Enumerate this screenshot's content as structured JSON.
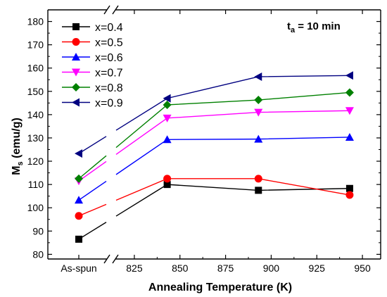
{
  "chart_data": {
    "type": "line",
    "title": "",
    "xlabel": "Annealing Temperature (K)",
    "ylabel_main": "M",
    "ylabel_sub": "s",
    "ylabel_unit": " (emu/g)",
    "annotation": {
      "main": "t",
      "sub": "a",
      "rest": " = 10 min"
    },
    "x_category": "As-spun",
    "x_ticks": [
      825,
      850,
      875,
      900,
      925,
      950
    ],
    "xlim": [
      815,
      960
    ],
    "ylim": [
      78,
      185
    ],
    "y_ticks": [
      80,
      90,
      100,
      110,
      120,
      130,
      140,
      150,
      160,
      170,
      180
    ],
    "legend_position": "top-left",
    "axis_break": true,
    "series": [
      {
        "name": "x=0.4",
        "marker": "square",
        "color": "#000000",
        "as_spun": 86.5,
        "x": [
          843,
          893,
          943
        ],
        "y": [
          110.0,
          107.5,
          108.3
        ]
      },
      {
        "name": "x=0.5",
        "marker": "circle",
        "color": "#ff0000",
        "as_spun": 96.5,
        "x": [
          843,
          893,
          943
        ],
        "y": [
          112.5,
          112.5,
          105.5
        ]
      },
      {
        "name": "x=0.6",
        "marker": "triangle-up",
        "color": "#0000ff",
        "as_spun": 103.3,
        "x": [
          843,
          893,
          943
        ],
        "y": [
          129.3,
          129.5,
          130.3
        ]
      },
      {
        "name": "x=0.7",
        "marker": "triangle-down",
        "color": "#ff00ff",
        "as_spun": 111.5,
        "x": [
          843,
          893,
          943
        ],
        "y": [
          138.5,
          141.0,
          141.7
        ]
      },
      {
        "name": "x=0.8",
        "marker": "diamond",
        "color": "#008000",
        "as_spun": 112.5,
        "x": [
          843,
          893,
          943
        ],
        "y": [
          144.2,
          146.3,
          149.5
        ]
      },
      {
        "name": "x=0.9",
        "marker": "triangle-left",
        "color": "#000080",
        "as_spun": 123.3,
        "x": [
          843,
          893,
          943
        ],
        "y": [
          147.0,
          156.3,
          156.8
        ]
      }
    ]
  }
}
